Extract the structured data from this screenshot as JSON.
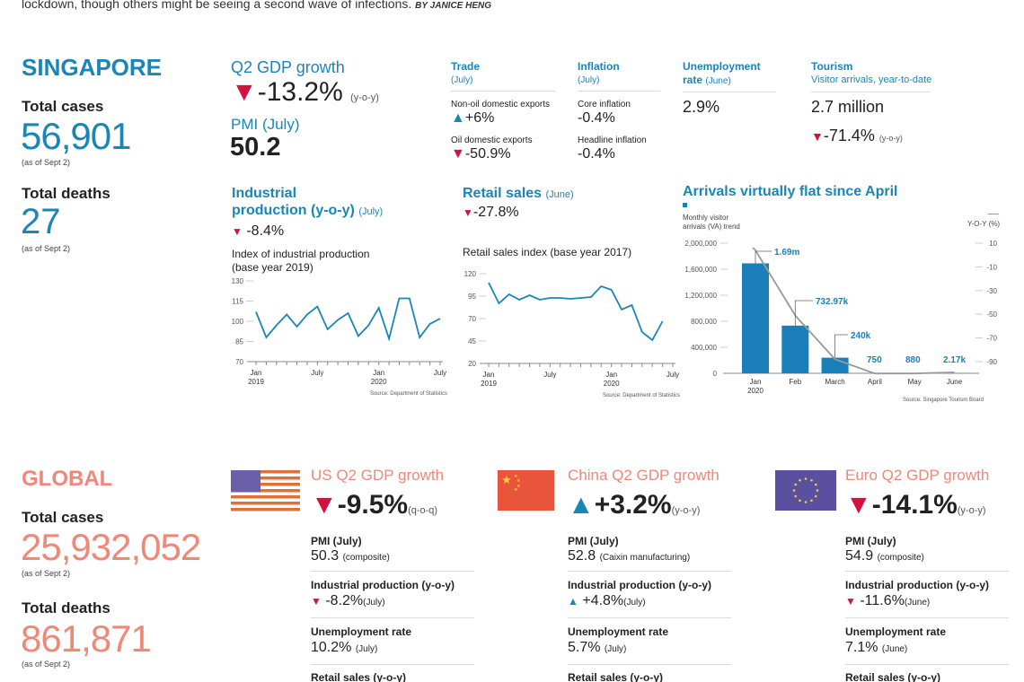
{
  "intro": {
    "text": "lockdown, though others might be seeing a second wave of infections.",
    "byline": "BY JANICE HENG"
  },
  "colors": {
    "singapore_blue": "#1a86b8",
    "global_salmon": "#ee8878",
    "down_red": "#d3123f",
    "up_blue": "#1a86b8",
    "line_gray": "#999999"
  },
  "singapore": {
    "heading": "SINGAPORE",
    "cases_label": "Total cases",
    "cases": "56,901",
    "cases_asof": "(as of Sept 2)",
    "deaths_label": "Total deaths",
    "deaths": "27",
    "deaths_asof": "(as of Sept 2)",
    "gdp": {
      "label": "Q2 GDP growth",
      "value": "-13.2%",
      "unit": "(y-o-y)",
      "direction": "down"
    },
    "pmi": {
      "label": "PMI (July)",
      "value": "50.2"
    },
    "trade": {
      "label": "Trade",
      "period": "(July)",
      "items": [
        {
          "label": "Non-oil domestic exports",
          "value": "+6%",
          "direction": "up"
        },
        {
          "label": "Oil domestic exports",
          "value": "-50.9%",
          "direction": "down"
        }
      ]
    },
    "inflation": {
      "label": "Inflation",
      "period": "(July)",
      "items": [
        {
          "label": "Core inflation",
          "value": "-0.4%"
        },
        {
          "label": "Headline inflation",
          "value": "-0.4%"
        }
      ]
    },
    "unemployment": {
      "label1": "Unemployment",
      "label2": "rate",
      "period": "(June)",
      "value": "2.9%"
    },
    "tourism": {
      "label": "Tourism",
      "sublabel": "Visitor arrivals, year-to-date",
      "value": "2.7 million",
      "change": "-71.4%",
      "unit": "(y-o-y)",
      "direction": "down"
    },
    "industrial": {
      "title1": "Industrial",
      "title2": "production (y-o-y)",
      "period": "(July)",
      "value": "-8.4%",
      "direction": "down"
    },
    "retail": {
      "title": "Retail sales",
      "period": "(June)",
      "value": "-27.8%",
      "direction": "down"
    }
  },
  "chart_data": [
    {
      "type": "line",
      "title": "Index of industrial production",
      "subtitle": "(base year 2019)",
      "x_ticks": [
        {
          "label": "Jan",
          "sub": "2019",
          "index": 0
        },
        {
          "label": "July",
          "sub": "",
          "index": 6
        },
        {
          "label": "Jan",
          "sub": "2020",
          "index": 12
        },
        {
          "label": "July",
          "sub": "",
          "index": 18
        }
      ],
      "y_ticks": [
        130,
        115,
        100,
        85,
        70
      ],
      "ylim": [
        70,
        130
      ],
      "values": [
        107,
        88,
        97,
        105,
        96,
        105,
        111,
        94,
        101,
        106,
        89,
        97,
        110,
        87,
        117,
        117,
        88,
        98,
        102
      ],
      "source": "Source: Department of Statistics",
      "color": "#1a86b8"
    },
    {
      "type": "line",
      "title": "Retail sales index (base year 2017)",
      "x_ticks": [
        {
          "label": "Jan",
          "sub": "2019",
          "index": 0
        },
        {
          "label": "July",
          "sub": "",
          "index": 6
        },
        {
          "label": "Jan",
          "sub": "2020",
          "index": 12
        },
        {
          "label": "July",
          "sub": "",
          "index": 18
        }
      ],
      "y_ticks": [
        120,
        95,
        70,
        45,
        20
      ],
      "ylim": [
        20,
        120
      ],
      "values": [
        110,
        87,
        97,
        91,
        96,
        91,
        93,
        93,
        92,
        93,
        94,
        106,
        102,
        80,
        85,
        55,
        46,
        67
      ],
      "source": "Source: Department of Statistics",
      "color": "#1a86b8"
    },
    {
      "type": "bar",
      "title": "Arrivals virtually flat since April",
      "left_label1": "Monthly visitor",
      "left_label2": "arrivals (VA) trend",
      "right_label": "Y-O-Y (%)",
      "categories": [
        "Jan",
        "Feb",
        "March",
        "April",
        "May",
        "June"
      ],
      "category_sub": [
        "2020",
        "",
        "",
        "",
        "",
        ""
      ],
      "values": [
        1690000,
        732970,
        240000,
        750,
        880,
        2170
      ],
      "data_labels": [
        "1.69m",
        "732.97k",
        "240k",
        "750",
        "880",
        "2.17k"
      ],
      "y_ticks": [
        {
          "v": 2000000,
          "label": "2,000,000"
        },
        {
          "v": 1600000,
          "label": "1,600,000"
        },
        {
          "v": 1200000,
          "label": "1,200,000"
        },
        {
          "v": 800000,
          "label": "800,000"
        },
        {
          "v": 400000,
          "label": "400,000"
        },
        {
          "v": 0,
          "label": "0"
        }
      ],
      "ylim": [
        0,
        2000000
      ],
      "yoy_values": [
        4,
        -51,
        -88,
        -100,
        -100,
        -99
      ],
      "y2_ticks": [
        10,
        -10,
        -30,
        -50,
        -70,
        -90
      ],
      "y2lim": [
        -100,
        10
      ],
      "source": "Source: Singapore Tourism Board",
      "bar_color": "#1a7fb8",
      "line_color": "#999999"
    }
  ],
  "global": {
    "heading": "GLOBAL",
    "cases_label": "Total cases",
    "cases": "25,932,052",
    "cases_asof": "(as of Sept 2)",
    "deaths_label": "Total deaths",
    "deaths": "861,871",
    "deaths_asof": "(as of Sept 2)",
    "regions": [
      {
        "flag": "us-flag",
        "title": "US Q2 GDP growth",
        "gdp": "-9.5%",
        "gdp_unit": "(q-o-q)",
        "gdp_dir": "down",
        "pmi_label": "PMI (July)",
        "pmi": "50.3",
        "pmi_note": "(composite)",
        "ip_label": "Industrial production (y-o-y)",
        "ip": "-8.2%",
        "ip_note": "(July)",
        "ip_dir": "down",
        "ue_label": "Unemployment rate",
        "ue": "10.2%",
        "ue_note": "(July)",
        "rs_label": "Retail sales (y-o-y)"
      },
      {
        "flag": "china-flag",
        "title": "China Q2 GDP growth",
        "gdp": "+3.2%",
        "gdp_unit": "(y-o-y)",
        "gdp_dir": "up",
        "pmi_label": "PMI (July)",
        "pmi": "52.8",
        "pmi_note": "(Caixin manufacturing)",
        "ip_label": "Industrial production (y-o-y)",
        "ip": "+4.8%",
        "ip_note": "(July)",
        "ip_dir": "up",
        "ue_label": "Unemployment rate",
        "ue": "5.7%",
        "ue_note": "(July)",
        "rs_label": "Retail sales (y-o-y)"
      },
      {
        "flag": "eu-flag",
        "title": "Euro Q2 GDP growth",
        "gdp": "-14.1%",
        "gdp_unit": "(y-o-y)",
        "gdp_dir": "down",
        "pmi_label": "PMI (July)",
        "pmi": "54.9",
        "pmi_note": "(composite)",
        "ip_label": "Industrial production (y-o-y)",
        "ip": "-11.6%",
        "ip_note": "(June)",
        "ip_dir": "down",
        "ue_label": "Unemployment rate",
        "ue": "7.1%",
        "ue_note": "(June)",
        "rs_label": "Retail sales (y-o-y)"
      }
    ]
  }
}
